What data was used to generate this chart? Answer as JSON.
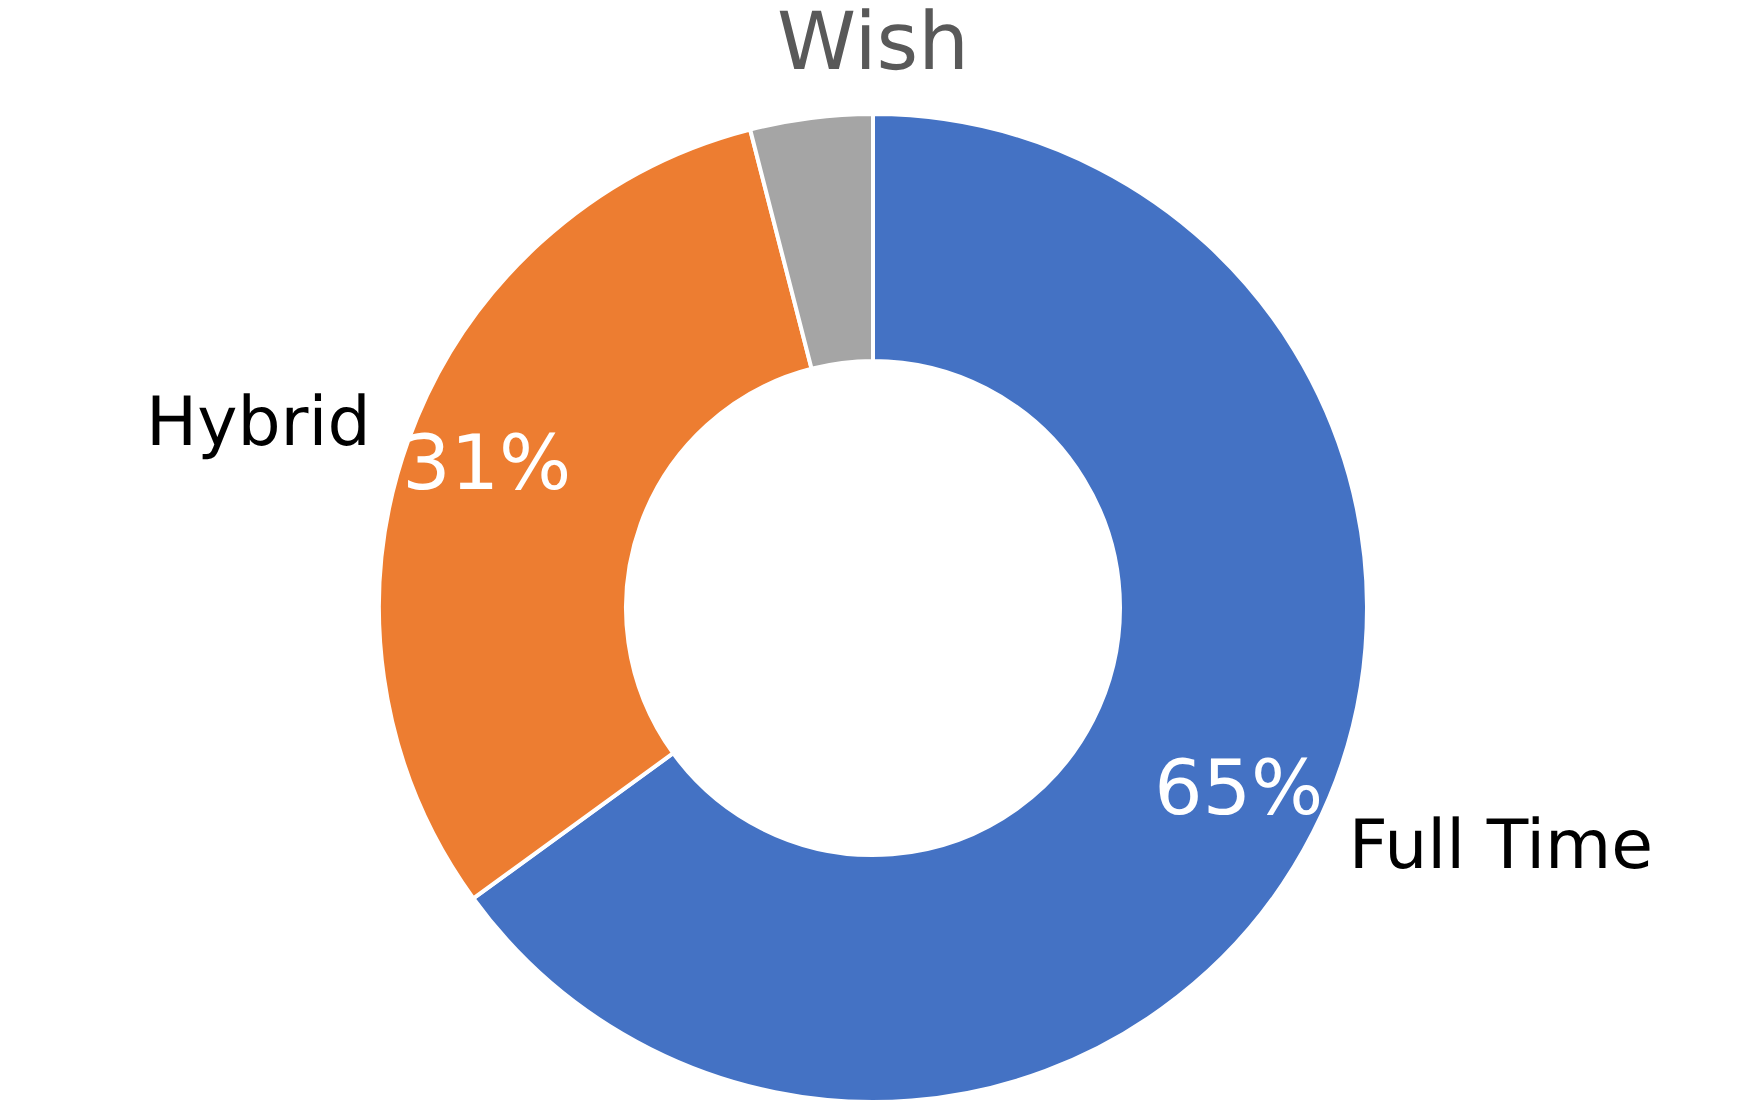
{
  "chart_data": {
    "type": "donut",
    "title": "Wish",
    "categories": [
      "Full Time",
      "Hybrid",
      null
    ],
    "values": [
      65,
      31,
      4
    ],
    "colors": [
      "#4472c4",
      "#ed7d31",
      "#a5a5a5"
    ],
    "value_labels": [
      "65%",
      "31%",
      null
    ],
    "legend": false
  }
}
